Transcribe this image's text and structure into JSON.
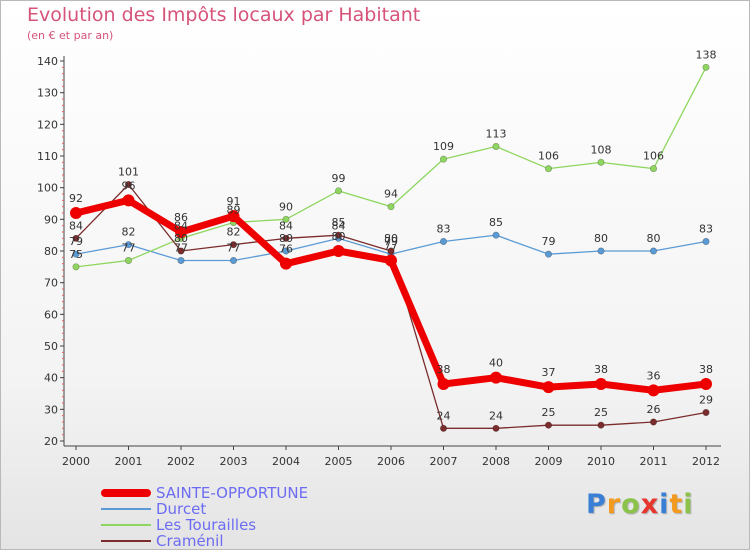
{
  "chart_data": {
    "type": "line",
    "title": "Evolution des Impôts locaux par Habitant",
    "subtitle": "(en € et par an)",
    "xlabel": "",
    "ylabel": "",
    "categories": [
      "2000",
      "2001",
      "2002",
      "2003",
      "2004",
      "2005",
      "2006",
      "2007",
      "2008",
      "2009",
      "2010",
      "2011",
      "2012"
    ],
    "yticks": [
      "20",
      "30",
      "40",
      "50",
      "60",
      "70",
      "80",
      "90",
      "100",
      "110",
      "120",
      "130",
      "140"
    ],
    "ylim": [
      20,
      140
    ],
    "grid": false,
    "legend_position": "bottom-left",
    "series": [
      {
        "name": "Durcet",
        "color": "#5b9bd5",
        "values": [
          79,
          82,
          77,
          77,
          80,
          84,
          79,
          83,
          85,
          79,
          80,
          80,
          83
        ],
        "labels": [
          "79",
          "82",
          "77",
          "77",
          "80",
          "84",
          "79",
          "83",
          "85",
          "79",
          "80",
          "80",
          "83"
        ]
      },
      {
        "name": "Les Tourailles",
        "color": "#8ed65f",
        "values": [
          75,
          77,
          84,
          89,
          90,
          99,
          94,
          109,
          113,
          106,
          108,
          106,
          138
        ],
        "labels": [
          "75",
          "77",
          "84",
          "89",
          "90",
          "99",
          "94",
          "109",
          "113",
          "106",
          "108",
          "106",
          "138"
        ]
      },
      {
        "name": "Craménil",
        "color": "#7b2c2c",
        "values": [
          84,
          101,
          80,
          82,
          84,
          85,
          80,
          24,
          24,
          25,
          25,
          26,
          29
        ],
        "labels": [
          "84",
          "101",
          "80",
          "82",
          "84",
          "85",
          "80",
          "24",
          "24",
          "25",
          "25",
          "26",
          "29"
        ]
      },
      {
        "name": "SAINTE-OPPORTUNE",
        "color": "#ee0000",
        "values": [
          92,
          96,
          86,
          91,
          76,
          80,
          77,
          38,
          40,
          37,
          38,
          36,
          38
        ],
        "labels": [
          "92",
          "96",
          "86",
          "91",
          "76",
          "80",
          "77",
          "38",
          "40",
          "37",
          "38",
          "36",
          "38"
        ]
      }
    ]
  },
  "legend": [
    {
      "name": "SAINTE-OPPORTUNE",
      "color": "#ee0000"
    },
    {
      "name": "Durcet",
      "color": "#5b9bd5"
    },
    {
      "name": "Les Tourailles",
      "color": "#8ed65f"
    },
    {
      "name": "Craménil",
      "color": "#7b2c2c"
    }
  ],
  "logo": {
    "letters": [
      "P",
      "r",
      "o",
      "x",
      "i",
      "t",
      "i"
    ],
    "colors": [
      "#3a7fd6",
      "#f39a1e",
      "#8bc34a",
      "#e6362e",
      "#3a7fd6",
      "#f39a1e",
      "#8bc34a"
    ]
  }
}
